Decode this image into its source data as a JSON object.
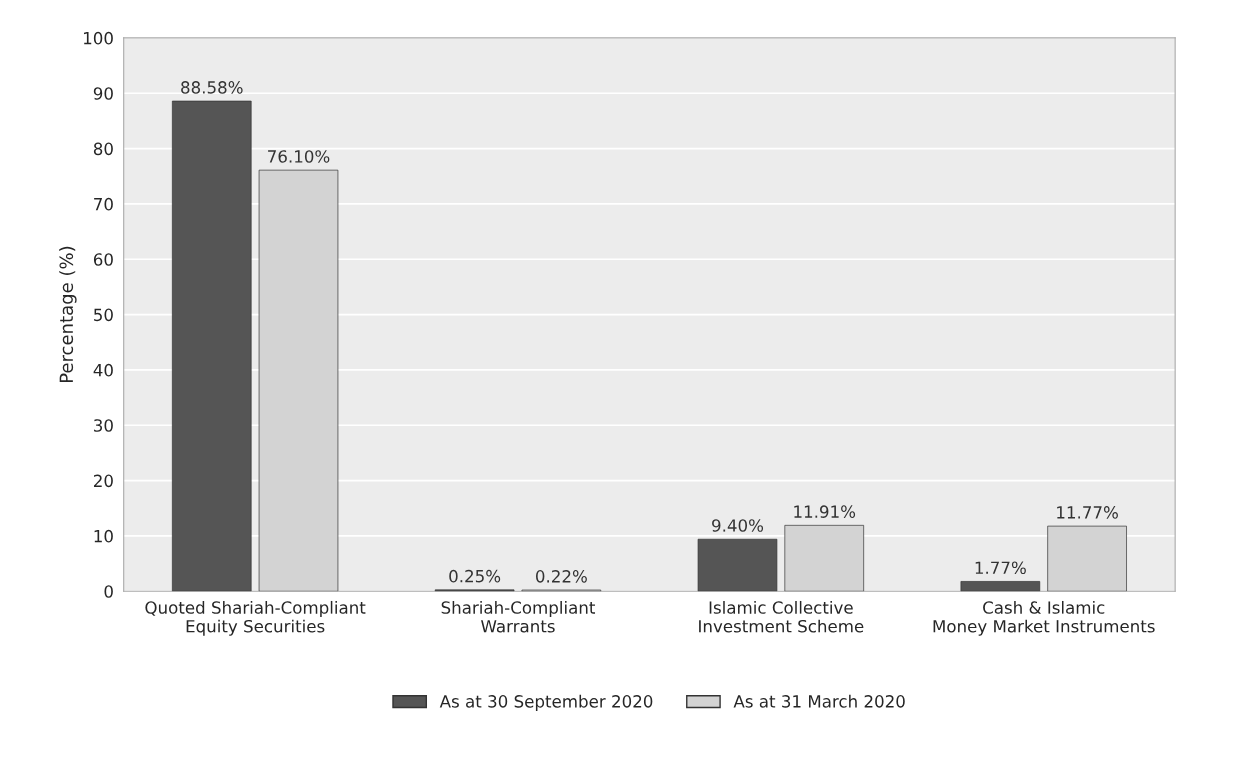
{
  "chart_data": {
    "type": "bar",
    "ylabel": "Percentage (%)",
    "categories": [
      "Quoted Shariah-Compliant\nEquity Securities",
      "Shariah-Compliant\nWarrants",
      "Islamic Collective\nInvestment Scheme",
      "Cash & Islamic\nMoney Market Instruments"
    ],
    "series": [
      {
        "name": "As at 30 September 2020",
        "color": "#555555",
        "values": [
          88.58,
          0.25,
          9.4,
          1.77
        ],
        "value_labels": [
          "88.58%",
          "0.25%",
          "9.40%",
          "1.77%"
        ]
      },
      {
        "name": "As at 31 March 2020",
        "color": "#d3d3d3",
        "values": [
          76.1,
          0.22,
          11.91,
          11.77
        ],
        "value_labels": [
          "76.10%",
          "0.22%",
          "11.91%",
          "11.77%"
        ]
      }
    ],
    "ylim": [
      0,
      100
    ],
    "yticks": [
      0,
      10,
      20,
      30,
      40,
      50,
      60,
      70,
      80,
      90,
      100
    ],
    "grid": "y",
    "legend": "bottom"
  }
}
